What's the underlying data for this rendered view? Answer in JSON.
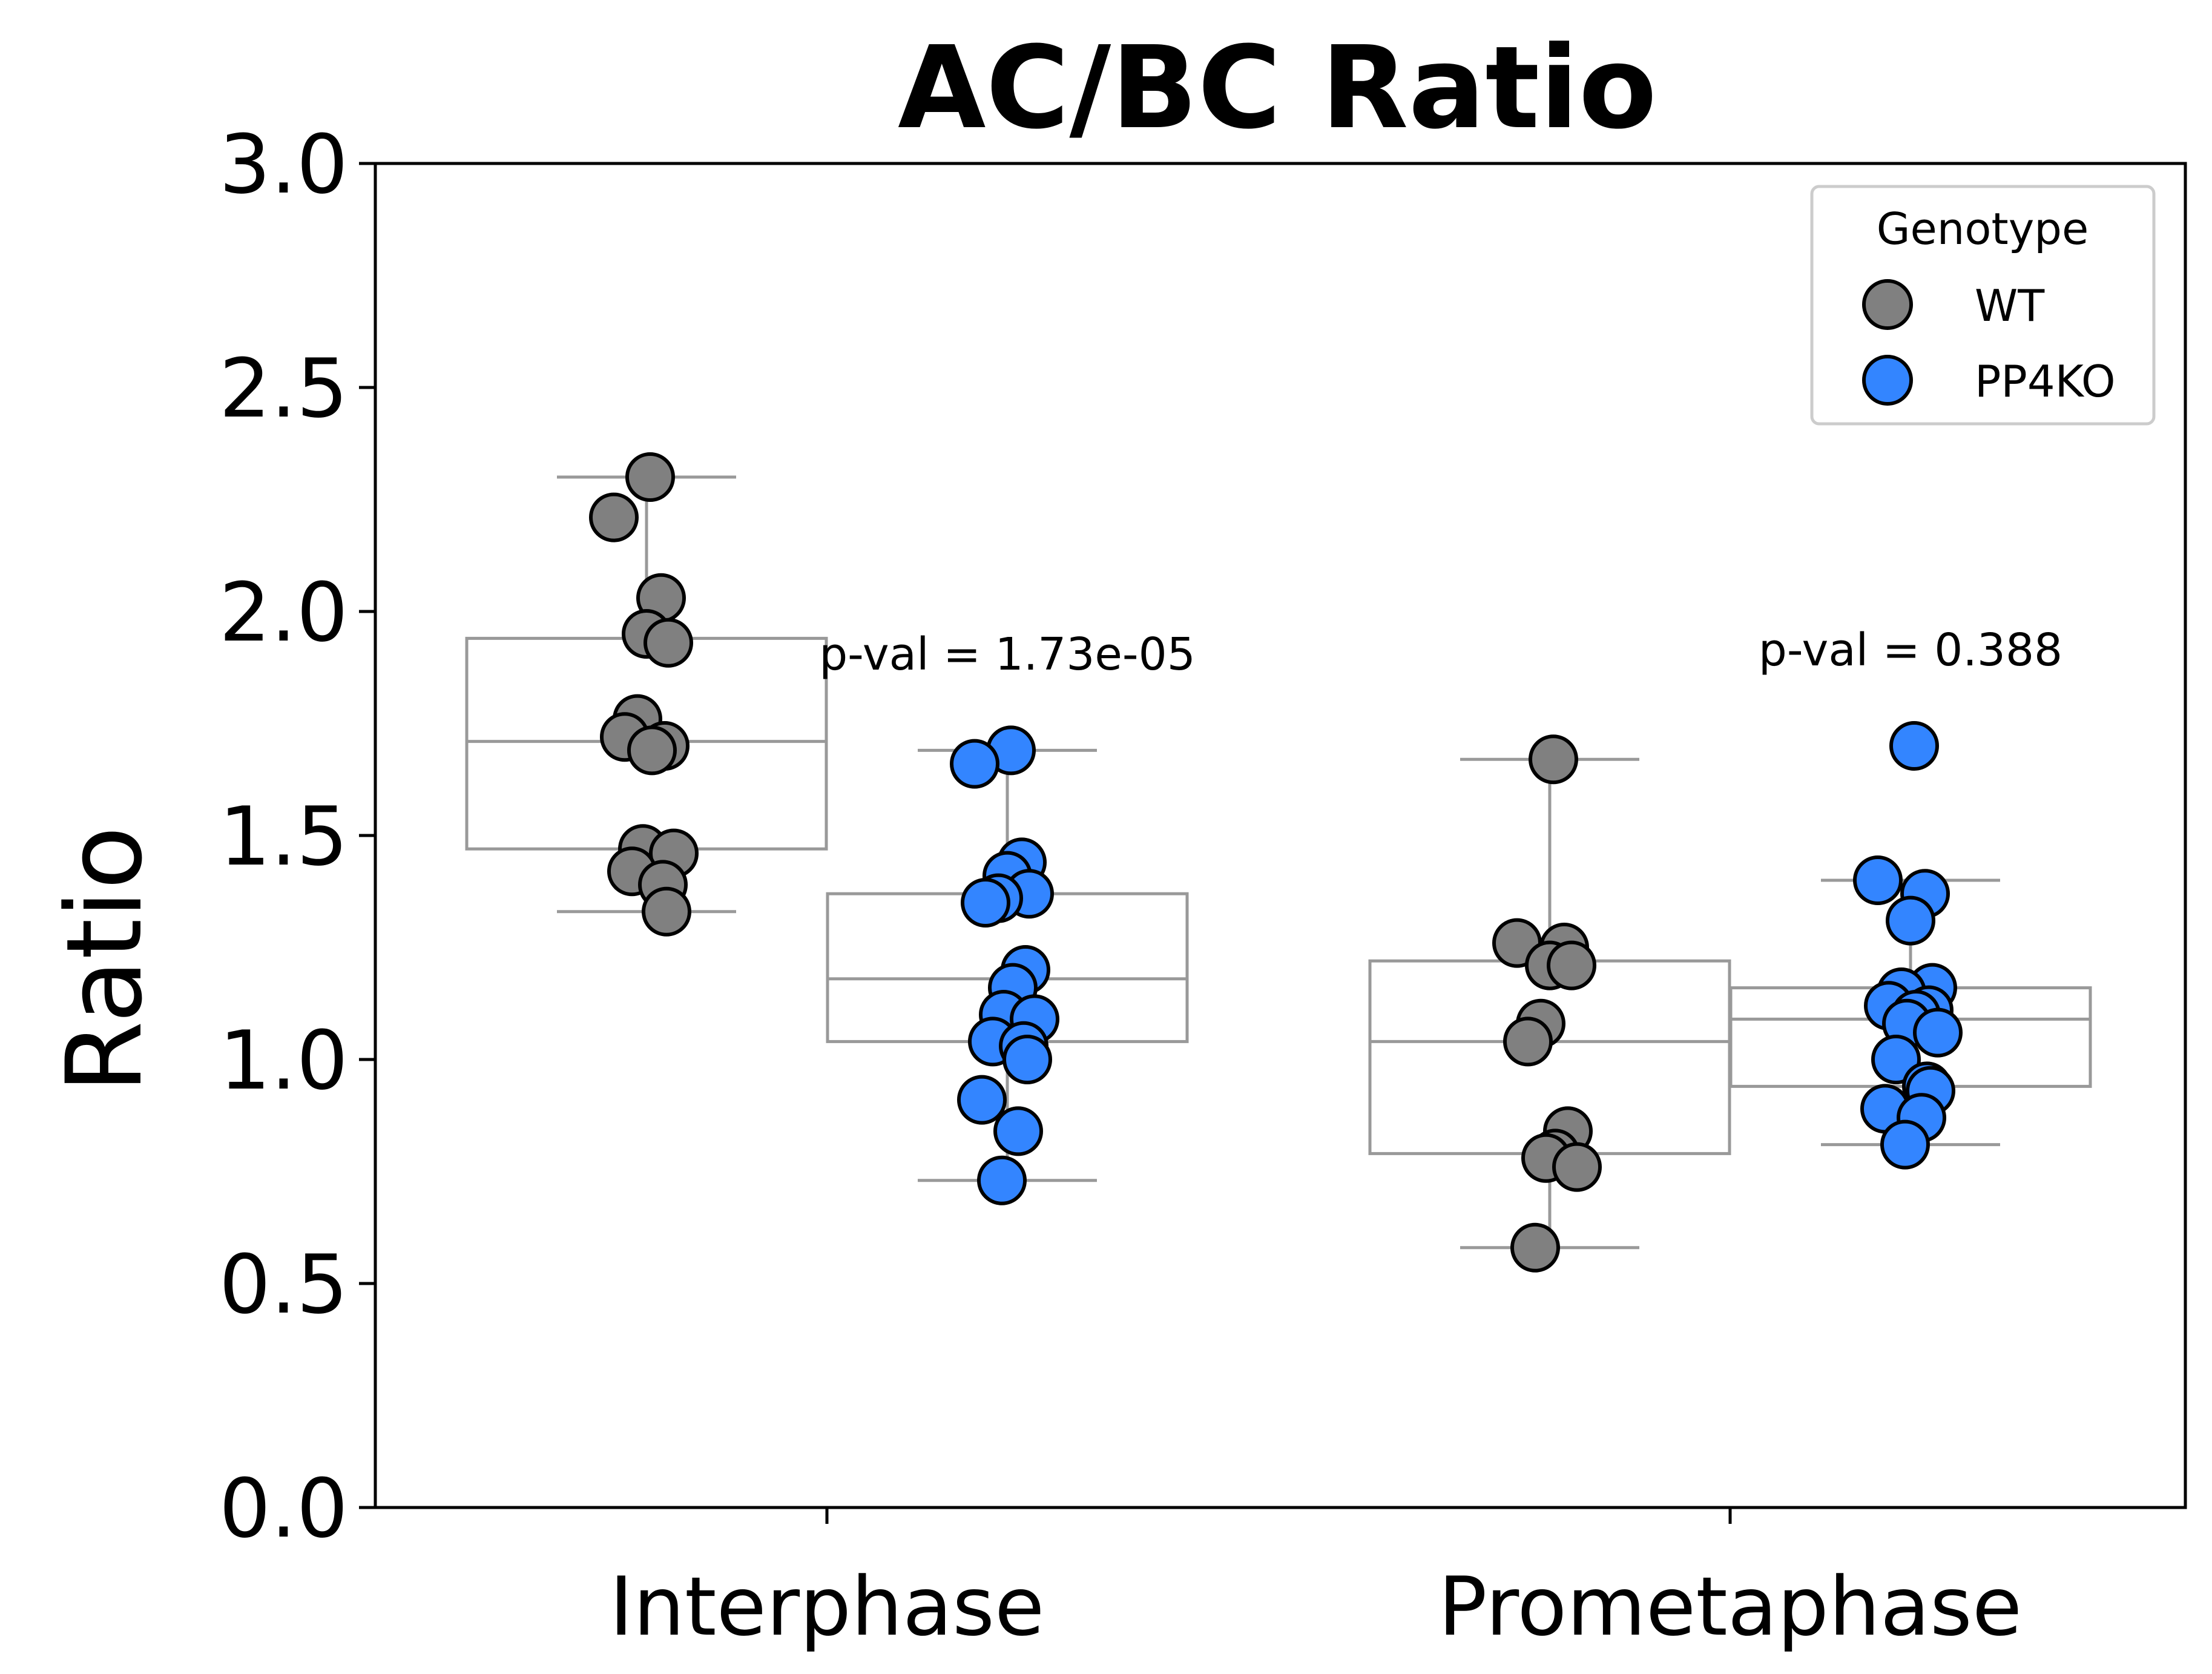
{
  "chart_data": {
    "type": "box",
    "title": "AC/BC Ratio",
    "xlabel": "",
    "ylabel": "Ratio",
    "ylim": [
      0.0,
      3.0
    ],
    "yticks": [
      "0.0",
      "0.5",
      "1.0",
      "1.5",
      "2.0",
      "2.5",
      "3.0"
    ],
    "yticks_values": [
      0.0,
      0.5,
      1.0,
      1.5,
      2.0,
      2.5,
      3.0
    ],
    "categories": [
      "Interphase",
      "Prometaphase"
    ],
    "grid": false,
    "legend": {
      "title": "Genotype",
      "position": "top-right",
      "entries": [
        "WT",
        "PP4KO"
      ]
    },
    "series": [
      {
        "name": "WT",
        "color": "#808080",
        "boxes": [
          {
            "category": "Interphase",
            "whisker_low": 1.33,
            "q1": 1.47,
            "median": 1.71,
            "q3": 1.94,
            "whisker_high": 2.3
          },
          {
            "category": "Prometaphase",
            "whisker_low": 0.58,
            "q1": 0.79,
            "median": 1.04,
            "q3": 1.22,
            "whisker_high": 1.67
          }
        ],
        "points": [
          {
            "category": "Interphase",
            "values": [
              2.3,
              2.21,
              2.03,
              1.95,
              1.93,
              1.76,
              1.72,
              1.7,
              1.69,
              1.47,
              1.46,
              1.42,
              1.39,
              1.33
            ]
          },
          {
            "category": "Prometaphase",
            "values": [
              1.67,
              1.26,
              1.25,
              1.21,
              1.21,
              1.08,
              1.04,
              0.84,
              0.79,
              0.78,
              0.76,
              0.58
            ]
          }
        ]
      },
      {
        "name": "PP4KO",
        "color": "#3385ff",
        "boxes": [
          {
            "category": "Interphase",
            "whisker_low": 0.73,
            "q1": 1.04,
            "median": 1.18,
            "q3": 1.37,
            "whisker_high": 1.69
          },
          {
            "category": "Prometaphase",
            "whisker_low": 0.81,
            "q1": 0.94,
            "median": 1.09,
            "q3": 1.16,
            "whisker_high": 1.4
          }
        ],
        "points": [
          {
            "category": "Interphase",
            "values": [
              1.69,
              1.66,
              1.44,
              1.41,
              1.37,
              1.36,
              1.35,
              1.2,
              1.16,
              1.1,
              1.09,
              1.04,
              1.03,
              1.0,
              0.91,
              0.84,
              0.73
            ]
          },
          {
            "category": "Prometaphase",
            "values": [
              1.7,
              1.4,
              1.37,
              1.31,
              1.16,
              1.15,
              1.12,
              1.11,
              1.1,
              1.08,
              1.06,
              1.0,
              0.94,
              0.93,
              0.89,
              0.87,
              0.81
            ]
          }
        ]
      }
    ],
    "annotations": [
      {
        "category": "Interphase",
        "text": "p-val = 1.73e-05",
        "y": 1.87
      },
      {
        "category": "Prometaphase",
        "text": "p-val = 0.388",
        "y": 1.88
      }
    ]
  }
}
